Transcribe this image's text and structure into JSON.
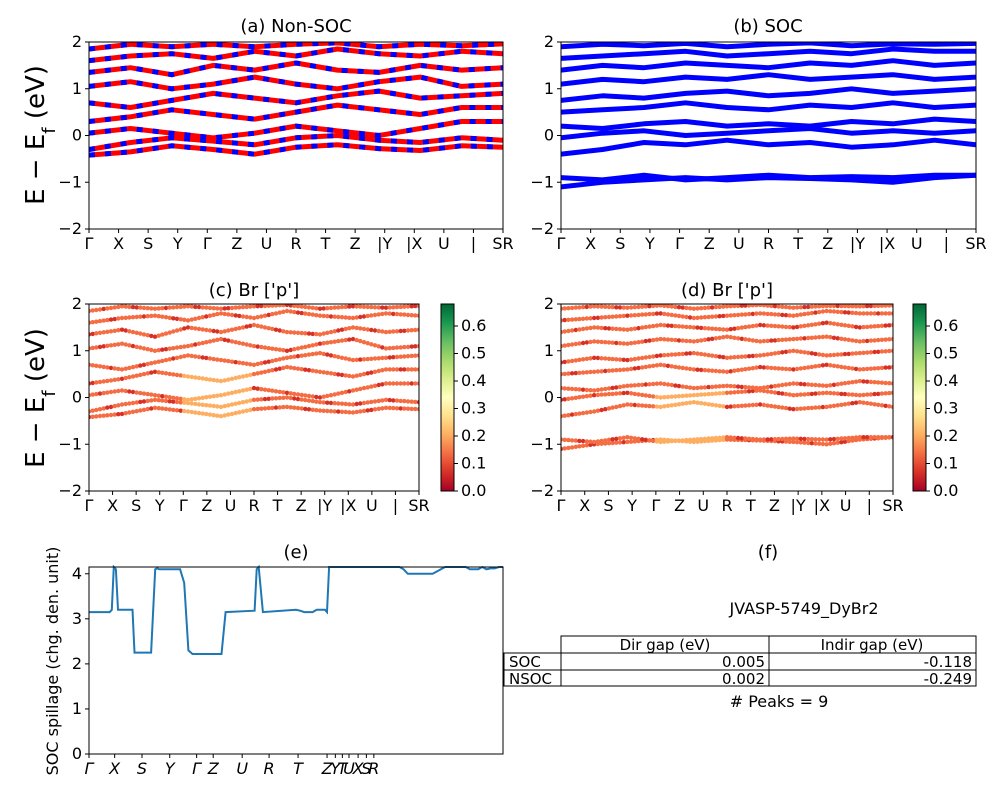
{
  "figure_id": "JVASP-5749_DyBr2",
  "peaks_text": "# Peaks = 9",
  "table": {
    "col_headers": [
      "Dir gap (eV)",
      "Indir gap (eV)"
    ],
    "rows": [
      {
        "label": "SOC",
        "dir": "0.005",
        "indir": "-0.118"
      },
      {
        "label": "NSOC",
        "dir": "0.002",
        "indir": "-0.249"
      }
    ]
  },
  "chart_data": [
    {
      "id": "a",
      "type": "line",
      "title": "(a) Non-SOC",
      "ylabel": "E − E_f (eV)",
      "ylim": [
        -2,
        2
      ],
      "yticks": [
        "−2",
        "−1",
        "0",
        "1",
        "2"
      ],
      "xticks": [
        "Γ",
        "X",
        "S",
        "Y",
        "Γ",
        "Z",
        "U",
        "R",
        "T",
        "Z",
        "|Y",
        "|X",
        "U",
        "|",
        "SR"
      ],
      "colors": [
        "#ff0000",
        "#0000ff"
      ],
      "bands": [
        [
          -0.42,
          -0.35,
          -0.22,
          -0.3,
          -0.4,
          -0.25,
          -0.2,
          -0.28,
          -0.32,
          -0.22,
          -0.25
        ],
        [
          -0.3,
          -0.15,
          -0.05,
          -0.12,
          -0.2,
          -0.05,
          0.0,
          -0.1,
          -0.15,
          -0.05,
          -0.1
        ],
        [
          0.05,
          0.15,
          0.05,
          -0.05,
          0.05,
          0.2,
          0.1,
          0.0,
          0.15,
          0.3,
          0.3
        ],
        [
          0.3,
          0.4,
          0.55,
          0.45,
          0.35,
          0.5,
          0.65,
          0.55,
          0.45,
          0.6,
          0.6
        ],
        [
          0.7,
          0.6,
          0.75,
          0.9,
          0.8,
          0.7,
          0.85,
          0.95,
          0.8,
          0.85,
          0.9
        ],
        [
          1.05,
          1.15,
          1.0,
          1.1,
          1.25,
          1.1,
          1.0,
          1.15,
          1.25,
          1.05,
          1.1
        ],
        [
          1.35,
          1.45,
          1.3,
          1.5,
          1.4,
          1.55,
          1.4,
          1.35,
          1.5,
          1.4,
          1.45
        ],
        [
          1.6,
          1.7,
          1.75,
          1.65,
          1.8,
          1.7,
          1.85,
          1.75,
          1.7,
          1.8,
          1.75
        ],
        [
          1.85,
          1.95,
          1.9,
          1.95,
          1.9,
          1.95,
          1.98,
          1.9,
          1.95,
          1.92,
          1.96
        ]
      ]
    },
    {
      "id": "b",
      "type": "line",
      "title": "(b) SOC",
      "ylabel": "",
      "ylim": [
        -2,
        2
      ],
      "yticks": [
        "−2",
        "−1",
        "0",
        "1",
        "2"
      ],
      "xticks": [
        "Γ",
        "X",
        "S",
        "Y",
        "Γ",
        "Z",
        "U",
        "R",
        "T",
        "Z",
        "|Y",
        "|X",
        "U",
        "|",
        "SR"
      ],
      "colors": [
        "#0000ff"
      ],
      "bands": [
        [
          -1.1,
          -1.0,
          -0.95,
          -0.9,
          -0.95,
          -0.9,
          -0.92,
          -0.95,
          -1.0,
          -0.9,
          -0.85
        ],
        [
          -0.9,
          -0.95,
          -0.85,
          -0.95,
          -0.9,
          -0.85,
          -0.9,
          -0.88,
          -0.9,
          -0.85,
          -0.85
        ],
        [
          -0.4,
          -0.3,
          -0.15,
          -0.2,
          -0.1,
          -0.2,
          -0.15,
          -0.25,
          -0.2,
          -0.1,
          -0.2
        ],
        [
          -0.05,
          0.05,
          0.1,
          0.0,
          0.05,
          0.1,
          0.15,
          0.05,
          0.1,
          0.05,
          0.1
        ],
        [
          0.2,
          0.15,
          0.25,
          0.3,
          0.2,
          0.25,
          0.2,
          0.3,
          0.25,
          0.35,
          0.3
        ],
        [
          0.5,
          0.55,
          0.6,
          0.7,
          0.6,
          0.55,
          0.65,
          0.6,
          0.7,
          0.6,
          0.65
        ],
        [
          0.75,
          0.85,
          0.8,
          0.9,
          0.95,
          0.85,
          0.9,
          1.0,
          0.9,
          0.95,
          1.0
        ],
        [
          1.1,
          1.2,
          1.15,
          1.25,
          1.2,
          1.3,
          1.2,
          1.25,
          1.3,
          1.2,
          1.25
        ],
        [
          1.4,
          1.5,
          1.45,
          1.55,
          1.5,
          1.45,
          1.55,
          1.5,
          1.6,
          1.5,
          1.55
        ],
        [
          1.65,
          1.7,
          1.75,
          1.8,
          1.7,
          1.75,
          1.8,
          1.75,
          1.85,
          1.8,
          1.8
        ],
        [
          1.9,
          1.95,
          1.92,
          1.97,
          1.9,
          1.95,
          1.98,
          1.92,
          1.96,
          1.95,
          1.97
        ]
      ]
    },
    {
      "id": "c",
      "type": "scatter",
      "title": "(c)  Br ['p']",
      "ylabel": "E − E_f (eV)",
      "ylim": [
        -2,
        2
      ],
      "yticks": [
        "−2",
        "−1",
        "0",
        "1",
        "2"
      ],
      "xticks": [
        "Γ",
        "X",
        "S",
        "Y",
        "Γ",
        "Z",
        "U",
        "R",
        "T",
        "Z",
        "|Y",
        "|X",
        "U",
        "|",
        "SR"
      ],
      "colorbar": {
        "ticks": [
          "0.0",
          "0.1",
          "0.2",
          "0.3",
          "0.4",
          "0.5",
          "0.6"
        ],
        "range": [
          0,
          0.68
        ],
        "cmap": "RdYlGn"
      },
      "bands": [
        [
          -0.42,
          -0.35,
          -0.22,
          -0.3,
          -0.4,
          -0.25,
          -0.2,
          -0.28,
          -0.32,
          -0.22,
          -0.25
        ],
        [
          -0.3,
          -0.15,
          -0.05,
          -0.12,
          -0.2,
          -0.05,
          0.0,
          -0.1,
          -0.15,
          -0.05,
          -0.1
        ],
        [
          0.05,
          0.15,
          0.05,
          -0.05,
          0.05,
          0.2,
          0.1,
          0.0,
          0.15,
          0.3,
          0.3
        ],
        [
          0.3,
          0.4,
          0.55,
          0.45,
          0.35,
          0.5,
          0.65,
          0.55,
          0.45,
          0.6,
          0.6
        ],
        [
          0.7,
          0.6,
          0.75,
          0.9,
          0.8,
          0.7,
          0.85,
          0.95,
          0.8,
          0.85,
          0.9
        ],
        [
          1.05,
          1.15,
          1.0,
          1.1,
          1.25,
          1.1,
          1.0,
          1.15,
          1.25,
          1.05,
          1.1
        ],
        [
          1.35,
          1.45,
          1.3,
          1.5,
          1.4,
          1.55,
          1.4,
          1.35,
          1.5,
          1.4,
          1.45
        ],
        [
          1.6,
          1.7,
          1.75,
          1.65,
          1.8,
          1.7,
          1.85,
          1.75,
          1.7,
          1.8,
          1.75
        ],
        [
          1.85,
          1.95,
          1.9,
          1.95,
          1.9,
          1.95,
          1.98,
          1.9,
          1.95,
          1.92,
          1.96
        ]
      ]
    },
    {
      "id": "d",
      "type": "scatter",
      "title": "(d) Br ['p']",
      "ylabel": "",
      "ylim": [
        -2,
        2
      ],
      "yticks": [
        "−2",
        "−1",
        "0",
        "1",
        "2"
      ],
      "xticks": [
        "Γ",
        "X",
        "S",
        "Y",
        "Γ",
        "Z",
        "U",
        "R",
        "T",
        "Z",
        "|Y",
        "|X",
        "U",
        "|",
        "SR"
      ],
      "colorbar": {
        "ticks": [
          "0.0",
          "0.1",
          "0.2",
          "0.3",
          "0.4",
          "0.5",
          "0.6"
        ],
        "range": [
          0,
          0.68
        ],
        "cmap": "RdYlGn"
      },
      "bands": [
        [
          -1.1,
          -1.0,
          -0.95,
          -0.9,
          -0.95,
          -0.9,
          -0.92,
          -0.95,
          -1.0,
          -0.9,
          -0.85
        ],
        [
          -0.9,
          -0.95,
          -0.85,
          -0.95,
          -0.9,
          -0.85,
          -0.9,
          -0.88,
          -0.9,
          -0.85,
          -0.85
        ],
        [
          -0.4,
          -0.3,
          -0.15,
          -0.2,
          -0.1,
          -0.2,
          -0.15,
          -0.25,
          -0.2,
          -0.1,
          -0.2
        ],
        [
          -0.05,
          0.05,
          0.1,
          0.0,
          0.05,
          0.1,
          0.15,
          0.05,
          0.1,
          0.05,
          0.1
        ],
        [
          0.2,
          0.15,
          0.25,
          0.3,
          0.2,
          0.25,
          0.2,
          0.3,
          0.25,
          0.35,
          0.3
        ],
        [
          0.5,
          0.55,
          0.6,
          0.7,
          0.6,
          0.55,
          0.65,
          0.6,
          0.7,
          0.6,
          0.65
        ],
        [
          0.75,
          0.85,
          0.8,
          0.9,
          0.95,
          0.85,
          0.9,
          1.0,
          0.9,
          0.95,
          1.0
        ],
        [
          1.1,
          1.2,
          1.15,
          1.25,
          1.2,
          1.3,
          1.2,
          1.25,
          1.3,
          1.2,
          1.25
        ],
        [
          1.4,
          1.5,
          1.45,
          1.55,
          1.5,
          1.45,
          1.55,
          1.5,
          1.6,
          1.5,
          1.55
        ],
        [
          1.65,
          1.7,
          1.75,
          1.8,
          1.7,
          1.75,
          1.8,
          1.75,
          1.85,
          1.8,
          1.8
        ],
        [
          1.9,
          1.95,
          1.92,
          1.97,
          1.9,
          1.95,
          1.98,
          1.92,
          1.96,
          1.95,
          1.97
        ]
      ]
    },
    {
      "id": "e",
      "type": "line",
      "title": "(e)",
      "ylabel": "SOC spillage (chg. den. unit)",
      "ylim": [
        0,
        4.15
      ],
      "xlim": [
        0,
        100
      ],
      "yticks": [
        "0",
        "1",
        "2",
        "3",
        "4"
      ],
      "xticks": [
        "Γ",
        "X",
        "S",
        "Y",
        "Γ",
        "Z",
        "U",
        "R",
        "T",
        "Z",
        "Y",
        "T",
        "U",
        "X",
        "S",
        "R"
      ],
      "color": "#1f77b4",
      "x": [
        0,
        5,
        5.5,
        6,
        6.5,
        7,
        10.5,
        11,
        15,
        16,
        16.5,
        17,
        22,
        23,
        24,
        25,
        32,
        33,
        40,
        40.5,
        41,
        42,
        50,
        51,
        52,
        54,
        55,
        57,
        57.5,
        58,
        75,
        76,
        77,
        80,
        83,
        84,
        85,
        86,
        87,
        88,
        89,
        90,
        91,
        92,
        93,
        94,
        95,
        96,
        97,
        98,
        99,
        100
      ],
      "y": [
        3.15,
        3.15,
        3.2,
        4.15,
        4.1,
        3.2,
        3.2,
        2.25,
        2.25,
        4.1,
        4.12,
        4.1,
        4.1,
        3.8,
        2.3,
        2.22,
        2.22,
        3.15,
        3.18,
        4.1,
        4.15,
        3.15,
        3.2,
        3.18,
        3.15,
        3.15,
        3.2,
        3.2,
        3.15,
        4.15,
        4.15,
        4.1,
        4.0,
        4.0,
        4.0,
        4.05,
        4.1,
        4.15,
        4.15,
        4.15,
        4.15,
        4.15,
        4.15,
        4.1,
        4.1,
        4.1,
        4.15,
        4.1,
        4.12,
        4.12,
        4.15,
        4.15
      ]
    }
  ]
}
